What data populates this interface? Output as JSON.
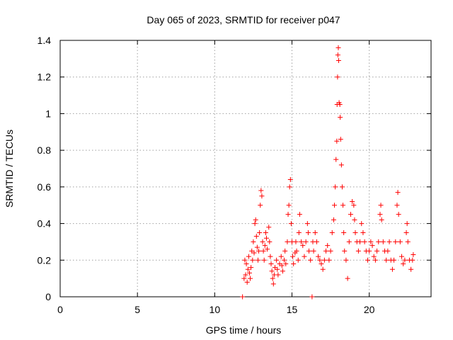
{
  "chart_data": {
    "type": "scatter",
    "title": "Day 065 of 2023, SRMTID for receiver p047",
    "xlabel": "GPS time / hours",
    "ylabel": "SRMTID / TECUs",
    "xlim": [
      0,
      24
    ],
    "ylim": [
      0,
      1.4
    ],
    "xticks": [
      0,
      5,
      10,
      15,
      20
    ],
    "yticks": [
      0,
      0.2,
      0.4,
      0.6,
      0.8,
      1,
      1.2,
      1.4
    ],
    "ytick_labels": [
      "0",
      "0.2",
      "0.4",
      "0.6",
      "0.8",
      "1",
      "1.2",
      "1.4"
    ],
    "grid": true,
    "marker": "plus",
    "color": "#ff0000",
    "series": [
      {
        "name": "p047",
        "points": [
          [
            11.8,
            0.0
          ],
          [
            11.9,
            0.1
          ],
          [
            11.95,
            0.2
          ],
          [
            12.0,
            0.12
          ],
          [
            12.05,
            0.18
          ],
          [
            12.1,
            0.08
          ],
          [
            12.15,
            0.15
          ],
          [
            12.2,
            0.22
          ],
          [
            12.25,
            0.13
          ],
          [
            12.3,
            0.1
          ],
          [
            12.35,
            0.16
          ],
          [
            12.4,
            0.25
          ],
          [
            12.45,
            0.2
          ],
          [
            12.5,
            0.3
          ],
          [
            12.55,
            0.24
          ],
          [
            12.6,
            0.4
          ],
          [
            12.65,
            0.42
          ],
          [
            12.7,
            0.33
          ],
          [
            12.75,
            0.27
          ],
          [
            12.8,
            0.2
          ],
          [
            12.85,
            0.25
          ],
          [
            12.9,
            0.35
          ],
          [
            12.95,
            0.5
          ],
          [
            13.0,
            0.58
          ],
          [
            13.05,
            0.55
          ],
          [
            13.1,
            0.3
          ],
          [
            13.15,
            0.25
          ],
          [
            13.2,
            0.2
          ],
          [
            13.25,
            0.28
          ],
          [
            13.3,
            0.35
          ],
          [
            13.35,
            0.32
          ],
          [
            13.4,
            0.26
          ],
          [
            13.5,
            0.38
          ],
          [
            13.55,
            0.3
          ],
          [
            13.6,
            0.22
          ],
          [
            13.65,
            0.18
          ],
          [
            13.7,
            0.14
          ],
          [
            13.75,
            0.1
          ],
          [
            13.8,
            0.07
          ],
          [
            13.85,
            0.12
          ],
          [
            13.9,
            0.16
          ],
          [
            14.0,
            0.2
          ],
          [
            14.05,
            0.15
          ],
          [
            14.1,
            0.12
          ],
          [
            14.2,
            0.18
          ],
          [
            14.3,
            0.22
          ],
          [
            14.35,
            0.17
          ],
          [
            14.4,
            0.14
          ],
          [
            14.5,
            0.2
          ],
          [
            14.55,
            0.25
          ],
          [
            14.6,
            0.18
          ],
          [
            14.7,
            0.3
          ],
          [
            14.75,
            0.45
          ],
          [
            14.8,
            0.5
          ],
          [
            14.85,
            0.6
          ],
          [
            14.9,
            0.64
          ],
          [
            14.95,
            0.4
          ],
          [
            15.0,
            0.3
          ],
          [
            15.05,
            0.22
          ],
          [
            15.1,
            0.18
          ],
          [
            15.2,
            0.24
          ],
          [
            15.25,
            0.3
          ],
          [
            15.3,
            0.25
          ],
          [
            15.4,
            0.2
          ],
          [
            15.45,
            0.35
          ],
          [
            15.5,
            0.45
          ],
          [
            15.6,
            0.3
          ],
          [
            15.7,
            0.28
          ],
          [
            15.8,
            0.22
          ],
          [
            15.9,
            0.3
          ],
          [
            16.0,
            0.4
          ],
          [
            16.05,
            0.35
          ],
          [
            16.1,
            0.25
          ],
          [
            16.2,
            0.2
          ],
          [
            16.3,
            0.0
          ],
          [
            16.35,
            0.3
          ],
          [
            16.4,
            0.25
          ],
          [
            16.5,
            0.35
          ],
          [
            16.6,
            0.3
          ],
          [
            16.7,
            0.22
          ],
          [
            16.8,
            0.2
          ],
          [
            16.9,
            0.18
          ],
          [
            17.0,
            0.15
          ],
          [
            17.1,
            0.2
          ],
          [
            17.2,
            0.25
          ],
          [
            17.3,
            0.28
          ],
          [
            17.4,
            0.2
          ],
          [
            17.5,
            0.25
          ],
          [
            17.6,
            0.35
          ],
          [
            17.7,
            0.42
          ],
          [
            17.75,
            0.5
          ],
          [
            17.8,
            0.6
          ],
          [
            17.85,
            0.75
          ],
          [
            17.9,
            0.85
          ],
          [
            17.92,
            1.05
          ],
          [
            17.95,
            1.2
          ],
          [
            17.97,
            1.32
          ],
          [
            18.0,
            1.36
          ],
          [
            18.02,
            1.29
          ],
          [
            18.05,
            1.06
          ],
          [
            18.1,
            1.05
          ],
          [
            18.12,
            0.98
          ],
          [
            18.15,
            0.86
          ],
          [
            18.2,
            0.72
          ],
          [
            18.25,
            0.6
          ],
          [
            18.3,
            0.5
          ],
          [
            18.35,
            0.35
          ],
          [
            18.4,
            0.25
          ],
          [
            18.5,
            0.2
          ],
          [
            18.6,
            0.1
          ],
          [
            18.7,
            0.3
          ],
          [
            18.8,
            0.45
          ],
          [
            18.9,
            0.52
          ],
          [
            19.0,
            0.5
          ],
          [
            19.05,
            0.42
          ],
          [
            19.1,
            0.35
          ],
          [
            19.2,
            0.3
          ],
          [
            19.3,
            0.25
          ],
          [
            19.4,
            0.3
          ],
          [
            19.5,
            0.4
          ],
          [
            19.6,
            0.35
          ],
          [
            19.7,
            0.3
          ],
          [
            19.8,
            0.25
          ],
          [
            19.9,
            0.2
          ],
          [
            20.0,
            0.25
          ],
          [
            20.1,
            0.3
          ],
          [
            20.2,
            0.28
          ],
          [
            20.3,
            0.22
          ],
          [
            20.4,
            0.2
          ],
          [
            20.5,
            0.25
          ],
          [
            20.6,
            0.3
          ],
          [
            20.7,
            0.45
          ],
          [
            20.75,
            0.5
          ],
          [
            20.8,
            0.42
          ],
          [
            20.9,
            0.3
          ],
          [
            21.0,
            0.25
          ],
          [
            21.1,
            0.2
          ],
          [
            21.2,
            0.25
          ],
          [
            21.3,
            0.3
          ],
          [
            21.4,
            0.2
          ],
          [
            21.5,
            0.15
          ],
          [
            21.6,
            0.2
          ],
          [
            21.7,
            0.3
          ],
          [
            21.8,
            0.5
          ],
          [
            21.85,
            0.57
          ],
          [
            21.9,
            0.45
          ],
          [
            22.0,
            0.3
          ],
          [
            22.1,
            0.22
          ],
          [
            22.2,
            0.18
          ],
          [
            22.3,
            0.2
          ],
          [
            22.4,
            0.35
          ],
          [
            22.45,
            0.4
          ],
          [
            22.5,
            0.3
          ],
          [
            22.6,
            0.2
          ],
          [
            22.7,
            0.15
          ],
          [
            22.8,
            0.2
          ],
          [
            22.85,
            0.23
          ]
        ]
      }
    ]
  }
}
